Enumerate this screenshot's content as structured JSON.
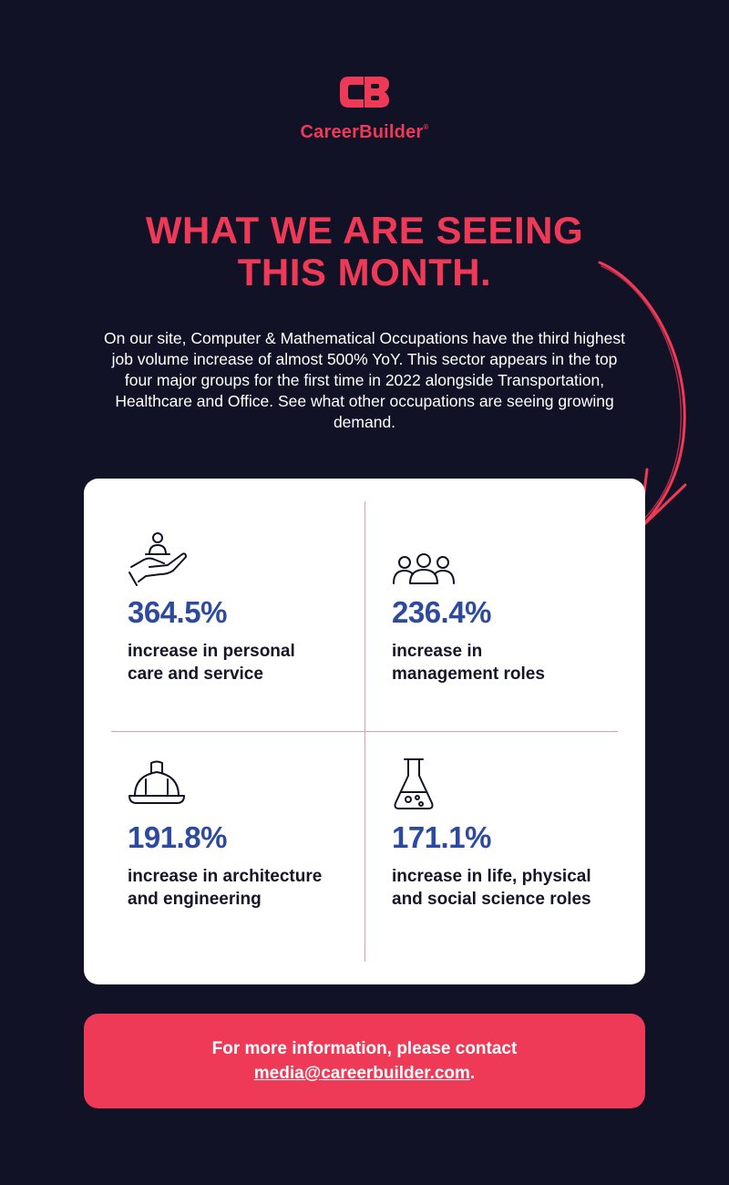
{
  "brand": {
    "name": "CareerBuilder",
    "registered_mark": "®",
    "accent_color": "#ef3a57",
    "background_color": "#111226",
    "stat_color": "#2e4a9c"
  },
  "headline": {
    "line1": "WHAT WE ARE SEEING",
    "line2": "THIS MONTH."
  },
  "intro": {
    "text": "On our site, Computer & Mathematical Occupations have the third highest job volume increase of almost 500% YoY. This sector appears in the top four major groups for the first time in 2022 alongside Transportation, Healthcare and Office. See what other occupations are seeing growing demand."
  },
  "stats": [
    {
      "icon": "hand-person-icon",
      "value": "364.5%",
      "desc_line1": "increase in personal",
      "desc_line2": "care and service"
    },
    {
      "icon": "group-icon",
      "value": "236.4%",
      "desc_line1": "increase in",
      "desc_line2": "management roles"
    },
    {
      "icon": "hard-hat-icon",
      "value": "191.8%",
      "desc_line1": "increase in architecture",
      "desc_line2": "and engineering"
    },
    {
      "icon": "flask-icon",
      "value": "171.1%",
      "desc_line1": "increase in life, physical",
      "desc_line2": "and social science roles"
    }
  ],
  "contact": {
    "prefix": "For more information, please contact",
    "email": "media@careerbuilder.com",
    "suffix": "."
  }
}
